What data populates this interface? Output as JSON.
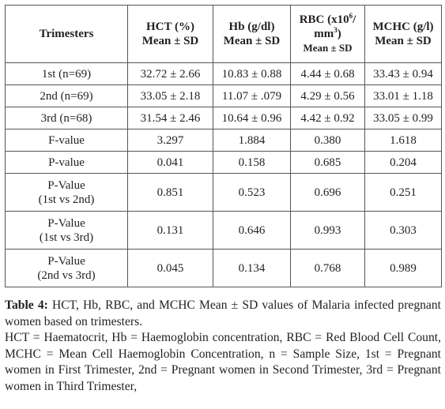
{
  "table": {
    "header": {
      "trimesters": "Trimesters",
      "hct": {
        "line1": "HCT (%)",
        "line2": "Mean ± SD"
      },
      "hb": {
        "line1": "Hb (g/dl)",
        "line2": "Mean ± SD"
      },
      "rbc": {
        "line1a": "RBC (x10",
        "sup6": "6",
        "line1b": "/",
        "line2a": "mm",
        "sup3": "3",
        "line2b": ")",
        "line3": "Mean ± SD"
      },
      "mchc": {
        "line1": "MCHC (g/l)",
        "line2": "Mean ± SD"
      }
    },
    "rows": [
      {
        "label": "1st (n=69)",
        "hct": "32.72 ± 2.66",
        "hb": "10.83 ± 0.88",
        "rbc": "4.44 ± 0.68",
        "mchc": "33.43 ± 0.94"
      },
      {
        "label": "2nd (n=69)",
        "hct": "33.05 ± 2.18",
        "hb": "11.07 ± .079",
        "rbc": "4.29 ± 0.56",
        "mchc": "33.01 ± 1.18"
      },
      {
        "label": "3rd (n=68)",
        "hct": "31.54 ± 2.46",
        "hb": "10.64 ± 0.96",
        "rbc": "4.42 ± 0.92",
        "mchc": "33.05 ± 0.99"
      },
      {
        "label": "F-value",
        "hct": "3.297",
        "hb": "1.884",
        "rbc": "0.380",
        "mchc": "1.618"
      },
      {
        "label": "P-value",
        "hct": "0.041",
        "hb": "0.158",
        "rbc": "0.685",
        "mchc": "0.204"
      }
    ],
    "pairs": [
      {
        "label1": "P-Value",
        "label2": "(1st vs 2nd)",
        "hct": "0.851",
        "hb": "0.523",
        "rbc": "0.696",
        "mchc": "0.251"
      },
      {
        "label1": "P-Value",
        "label2": "(1st vs 3rd)",
        "hct": "0.131",
        "hb": "0.646",
        "rbc": "0.993",
        "mchc": "0.303"
      },
      {
        "label1": "P-Value",
        "label2": "(2nd vs 3rd)",
        "hct": "0.045",
        "hb": "0.134",
        "rbc": "0.768",
        "mchc": "0.989"
      }
    ]
  },
  "caption": {
    "label": "Table 4:",
    "title": " HCT, Hb, RBC, and MCHC Mean ± SD values of Malaria infected pregnant women based on trimesters.",
    "abbreviations": "HCT = Haematocrit, Hb = Haemoglobin concentration, RBC = Red Blood Cell Count, MCHC = Mean Cell Haemoglobin Concentration, n = Sample Size, 1st = Pregnant women in First Trimester, 2nd = Pregnant women in Second Trimester, 3rd = Pregnant women in Third Trimester,"
  }
}
